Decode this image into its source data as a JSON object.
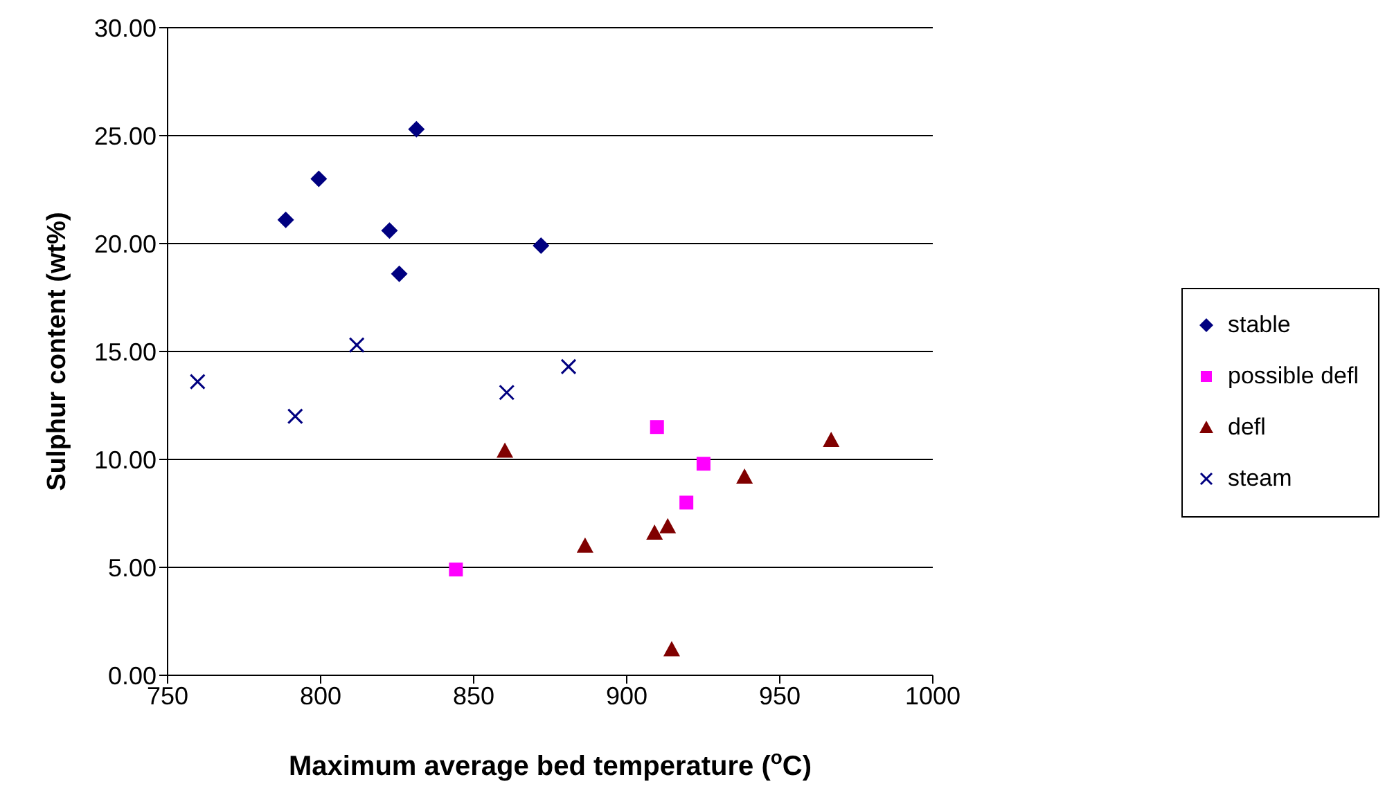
{
  "chart_data": {
    "type": "scatter",
    "xlabel": "Maximum average bed temperature ($^{o}$C)",
    "ylabel": "Sulphur content (wt%)",
    "xlim": [
      750,
      1000
    ],
    "xticks": [
      750,
      800,
      850,
      900,
      950,
      1000
    ],
    "ylim": [
      0,
      30
    ],
    "yticks": [
      {
        "value": 0,
        "label": "0.00"
      },
      {
        "value": 5,
        "label": "5.00"
      },
      {
        "value": 10,
        "label": "10.00"
      },
      {
        "value": 15,
        "label": "15.00"
      },
      {
        "value": 20,
        "label": "20.00"
      },
      {
        "value": 25,
        "label": "25.00"
      },
      {
        "value": 30,
        "label": "30.00"
      }
    ],
    "grid": "y",
    "legend": "right",
    "series": [
      {
        "name": "stable",
        "color": "#000080",
        "marker": "diamond",
        "x": [
          831.3,
          799.4,
          788.6,
          822.5,
          825.7,
          872
        ],
        "values": [
          25.3,
          23.0,
          21.1,
          20.6,
          18.6,
          19.9
        ]
      },
      {
        "name": "possible defl",
        "color": "#ff00ff",
        "marker": "square",
        "x": [
          844.2,
          909.9,
          925.1,
          919.5
        ],
        "values": [
          4.9,
          11.5,
          9.8,
          8.0
        ]
      },
      {
        "name": "defl",
        "color": "#800000",
        "marker": "triangle",
        "x": [
          860.2,
          886.4,
          909.1,
          913.4,
          914.7,
          938.5,
          966.8
        ],
        "values": [
          10.4,
          6.0,
          6.6,
          6.9,
          1.2,
          9.2,
          10.9
        ]
      },
      {
        "name": "steam",
        "color": "#000080",
        "marker": "cross",
        "x": [
          759.8,
          791.7,
          811.8,
          860.8,
          881
        ],
        "values": [
          13.6,
          12.0,
          15.3,
          13.1,
          14.3
        ]
      }
    ]
  }
}
